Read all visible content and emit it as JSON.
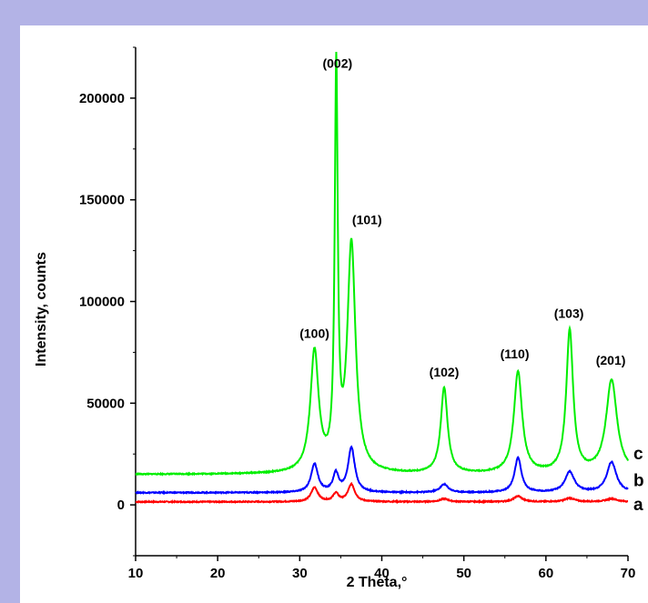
{
  "chart_data": {
    "type": "line",
    "xlabel": "2 Theta,°",
    "ylabel": "Intensity, counts",
    "xlim": [
      10,
      70
    ],
    "ylim": [
      -25000,
      225000
    ],
    "x_ticks": [
      "10",
      "20",
      "30",
      "40",
      "50",
      "60",
      "70"
    ],
    "y_ticks": [
      "0",
      "50000",
      "100000",
      "150000",
      "200000"
    ],
    "series": [
      {
        "name": "a",
        "color": "#ff0000",
        "baseline": 1500,
        "peaks": [
          {
            "x": 31.8,
            "height": 7000,
            "width": 0.5
          },
          {
            "x": 34.4,
            "height": 4000,
            "width": 0.4
          },
          {
            "x": 36.3,
            "height": 8500,
            "width": 0.5
          },
          {
            "x": 47.6,
            "height": 1500,
            "width": 0.6
          },
          {
            "x": 56.6,
            "height": 2800,
            "width": 0.6
          },
          {
            "x": 62.9,
            "height": 1800,
            "width": 0.7
          },
          {
            "x": 68.0,
            "height": 1500,
            "width": 0.8
          }
        ]
      },
      {
        "name": "b",
        "color": "#0000ff",
        "baseline": 6000,
        "peaks": [
          {
            "x": 31.8,
            "height": 14000,
            "width": 0.5
          },
          {
            "x": 34.4,
            "height": 9000,
            "width": 0.4
          },
          {
            "x": 36.3,
            "height": 22000,
            "width": 0.5
          },
          {
            "x": 47.6,
            "height": 4000,
            "width": 0.6
          },
          {
            "x": 56.6,
            "height": 17000,
            "width": 0.5
          },
          {
            "x": 62.9,
            "height": 10000,
            "width": 0.7
          },
          {
            "x": 68.0,
            "height": 15000,
            "width": 0.7
          }
        ]
      },
      {
        "name": "c",
        "color": "#00ee00",
        "baseline": 15000,
        "peaks": [
          {
            "x": 31.8,
            "height": 59000,
            "width": 0.6
          },
          {
            "x": 34.45,
            "height": 194000,
            "width": 0.22
          },
          {
            "x": 36.3,
            "height": 112000,
            "width": 0.6
          },
          {
            "x": 47.6,
            "height": 42000,
            "width": 0.5
          },
          {
            "x": 56.6,
            "height": 50000,
            "width": 0.6
          },
          {
            "x": 62.9,
            "height": 70000,
            "width": 0.5
          },
          {
            "x": 68.0,
            "height": 46000,
            "width": 0.8
          }
        ]
      }
    ],
    "annotations": [
      {
        "text": "(100)",
        "x": 31.8,
        "y": 82000
      },
      {
        "text": "(002)",
        "x": 34.6,
        "y": 215000
      },
      {
        "text": "(101)",
        "x": 38.2,
        "y": 138000
      },
      {
        "text": "(102)",
        "x": 47.6,
        "y": 63000
      },
      {
        "text": "(110)",
        "x": 56.2,
        "y": 72000
      },
      {
        "text": "(103)",
        "x": 62.8,
        "y": 92000
      },
      {
        "text": "(201)",
        "x": 67.9,
        "y": 69000
      }
    ],
    "curve_labels": [
      {
        "text": "c",
        "y": 25000
      },
      {
        "text": "b",
        "y": 12000
      },
      {
        "text": "a",
        "y": 0
      }
    ]
  }
}
